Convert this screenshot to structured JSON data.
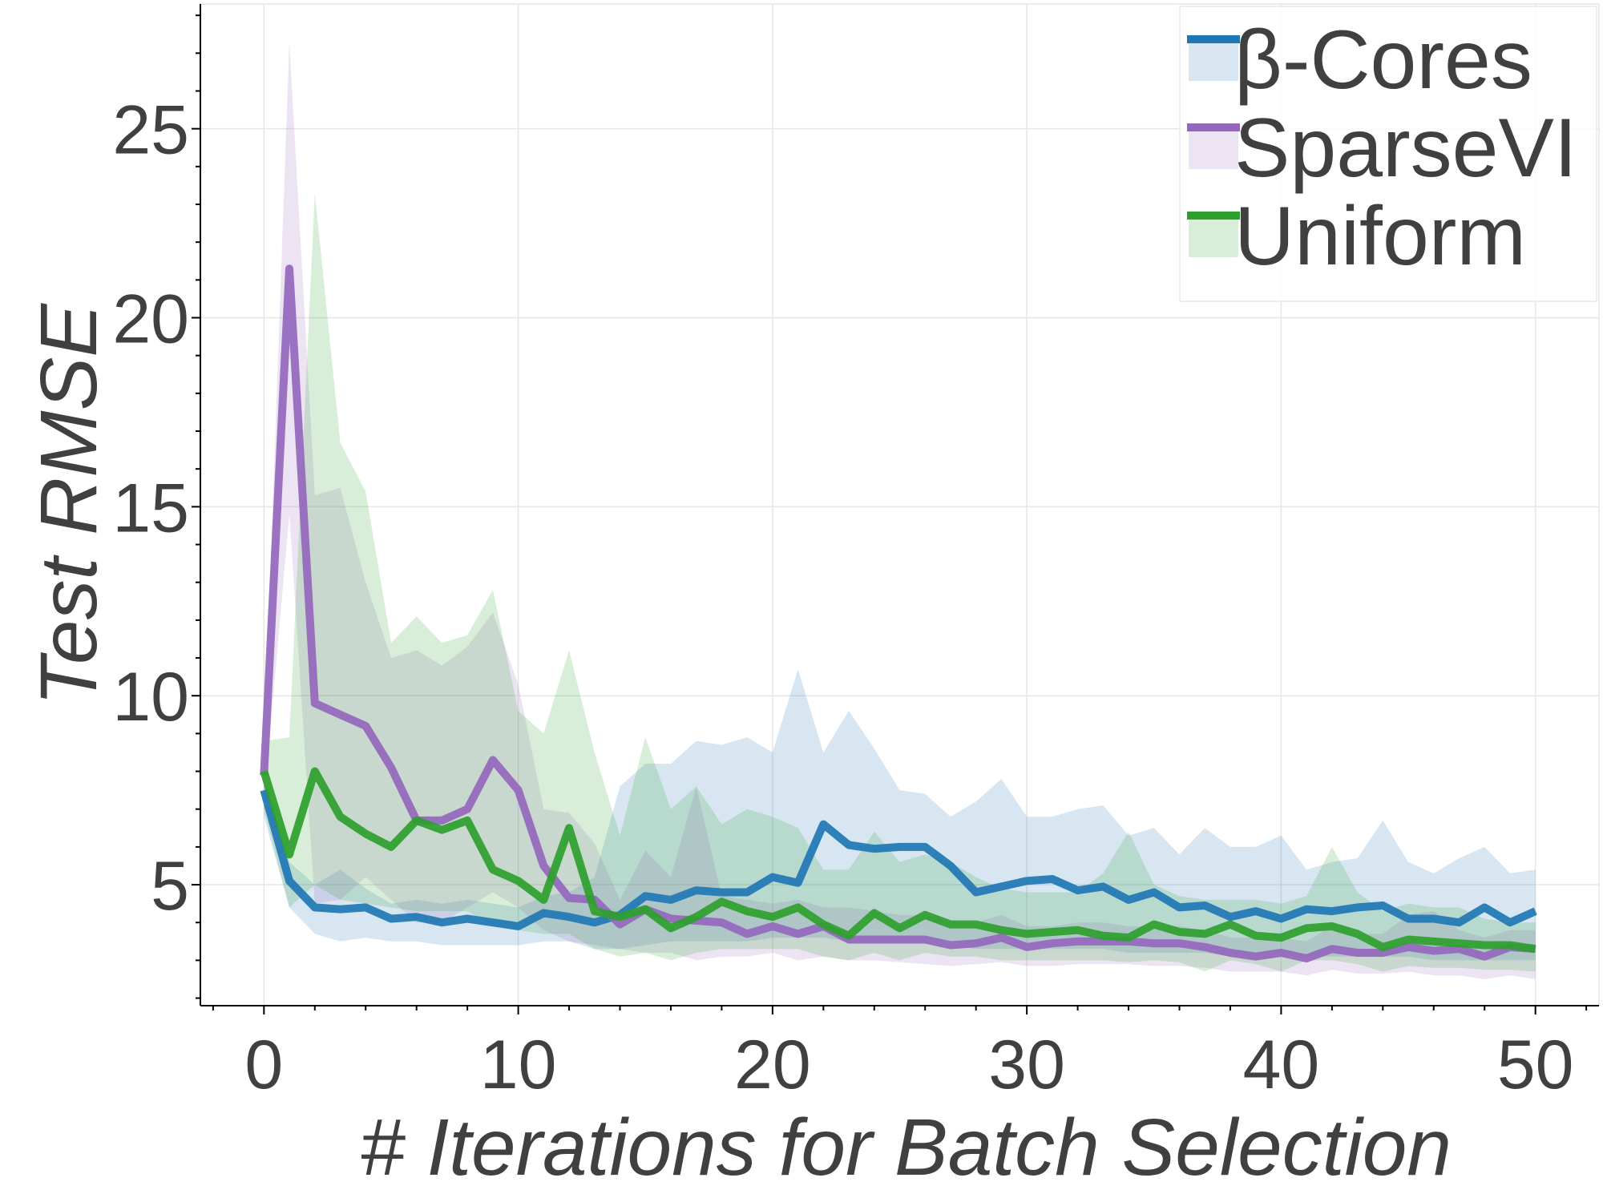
{
  "colors": {
    "beta_cores": "#1f77b4",
    "sparsevi": "#9467bd",
    "uniform": "#2ca02c",
    "text": "#404040",
    "grid": "#e6e6e6"
  },
  "chart_data": {
    "type": "line",
    "title": "",
    "xlabel": "# Iterations for Batch Selection",
    "ylabel": "Test RMSE",
    "xlim": [
      -2.5,
      52.5
    ],
    "ylim": [
      1.8,
      28.3
    ],
    "xticks": [
      0,
      10,
      20,
      30,
      40,
      50
    ],
    "yticks": [
      5,
      10,
      15,
      20,
      25
    ],
    "grid": true,
    "legend_position": "top-right",
    "x": [
      0,
      1,
      2,
      3,
      4,
      5,
      6,
      7,
      8,
      9,
      10,
      11,
      12,
      13,
      14,
      15,
      16,
      17,
      18,
      19,
      20,
      21,
      22,
      23,
      24,
      25,
      26,
      27,
      28,
      29,
      30,
      31,
      32,
      33,
      34,
      35,
      36,
      37,
      38,
      39,
      40,
      41,
      42,
      43,
      44,
      45,
      46,
      47,
      48,
      49,
      50
    ],
    "series": [
      {
        "name": "β-Cores",
        "color": "#1f77b4",
        "values": [
          7.5,
          5.1,
          4.4,
          4.35,
          4.4,
          4.1,
          4.15,
          4.0,
          4.1,
          4.0,
          3.9,
          4.25,
          4.15,
          4.0,
          4.2,
          4.7,
          4.6,
          4.85,
          4.8,
          4.8,
          5.2,
          5.05,
          6.6,
          6.05,
          5.95,
          6.0,
          6.0,
          5.5,
          4.8,
          4.95,
          5.1,
          5.15,
          4.85,
          4.95,
          4.6,
          4.8,
          4.4,
          4.45,
          4.15,
          4.3,
          4.1,
          4.35,
          4.3,
          4.4,
          4.45,
          4.1,
          4.1,
          4.0,
          4.4,
          4.0,
          4.3
        ],
        "upper": [
          7.8,
          5.6,
          5.0,
          5.4,
          4.9,
          4.5,
          4.6,
          4.5,
          4.6,
          4.5,
          4.4,
          4.7,
          4.8,
          5.2,
          7.6,
          8.2,
          8.2,
          8.8,
          8.7,
          8.9,
          8.5,
          10.7,
          8.5,
          9.6,
          8.6,
          7.5,
          7.4,
          6.8,
          7.2,
          7.8,
          6.8,
          6.8,
          7.0,
          7.1,
          6.3,
          6.5,
          5.8,
          6.5,
          6.0,
          6.0,
          6.3,
          5.4,
          5.6,
          5.7,
          6.7,
          5.6,
          5.3,
          5.7,
          6.0,
          5.3,
          5.4
        ],
        "lower": [
          6.8,
          4.4,
          3.7,
          3.5,
          3.6,
          3.5,
          3.5,
          3.4,
          3.4,
          3.4,
          3.4,
          3.5,
          3.5,
          3.3,
          3.3,
          3.4,
          3.5,
          3.5,
          3.5,
          3.5,
          3.6,
          3.6,
          3.6,
          3.5,
          3.5,
          3.5,
          3.5,
          3.4,
          3.3,
          3.3,
          3.3,
          3.3,
          3.3,
          3.3,
          3.2,
          3.2,
          3.2,
          3.2,
          3.1,
          3.1,
          3.1,
          3.1,
          3.1,
          3.1,
          3.1,
          3.1,
          3.0,
          3.0,
          3.0,
          3.0,
          3.0
        ]
      },
      {
        "name": "SparseVI",
        "color": "#9467bd",
        "values": [
          7.9,
          21.3,
          9.8,
          9.5,
          9.2,
          8.1,
          6.7,
          6.7,
          7.0,
          8.3,
          7.5,
          5.5,
          4.65,
          4.6,
          3.95,
          4.35,
          4.1,
          4.05,
          4.0,
          3.7,
          3.9,
          3.7,
          3.9,
          3.55,
          3.55,
          3.55,
          3.55,
          3.4,
          3.45,
          3.6,
          3.35,
          3.45,
          3.5,
          3.5,
          3.5,
          3.45,
          3.45,
          3.35,
          3.2,
          3.1,
          3.2,
          3.05,
          3.3,
          3.2,
          3.2,
          3.35,
          3.25,
          3.3,
          3.1,
          3.35,
          3.3
        ],
        "upper": [
          8.5,
          27.3,
          15.3,
          15.5,
          13.0,
          11.0,
          11.2,
          10.8,
          11.3,
          12.2,
          10.3,
          7.0,
          6.9,
          6.1,
          4.6,
          5.9,
          5.2,
          7.6,
          4.7,
          4.6,
          4.5,
          4.6,
          4.4,
          4.4,
          4.3,
          4.2,
          4.2,
          4.0,
          4.0,
          4.2,
          3.9,
          3.9,
          4.0,
          4.0,
          3.9,
          3.9,
          3.9,
          3.8,
          3.6,
          3.6,
          3.6,
          3.5,
          3.9,
          3.7,
          3.7,
          4.2,
          4.3,
          3.8,
          3.6,
          3.8,
          3.8
        ],
        "lower": [
          7.2,
          14.8,
          4.5,
          4.6,
          5.2,
          4.6,
          4.0,
          4.0,
          4.4,
          4.8,
          4.4,
          3.8,
          3.5,
          3.4,
          3.3,
          3.2,
          3.2,
          3.0,
          3.1,
          3.1,
          3.2,
          3.0,
          3.1,
          3.0,
          3.0,
          2.95,
          2.9,
          2.85,
          2.9,
          2.95,
          2.85,
          2.85,
          2.9,
          2.9,
          2.9,
          2.85,
          2.85,
          2.8,
          2.7,
          2.7,
          2.7,
          2.6,
          2.75,
          2.65,
          2.65,
          2.7,
          2.6,
          2.6,
          2.5,
          2.6,
          2.5
        ]
      },
      {
        "name": "Uniform",
        "color": "#2ca02c",
        "values": [
          8.0,
          5.8,
          8.0,
          6.8,
          6.35,
          6.0,
          6.7,
          6.45,
          6.7,
          5.4,
          5.1,
          4.6,
          6.5,
          4.3,
          4.15,
          4.35,
          3.85,
          4.15,
          4.55,
          4.3,
          4.15,
          4.4,
          3.95,
          3.65,
          4.25,
          3.85,
          4.2,
          3.95,
          3.95,
          3.8,
          3.7,
          3.75,
          3.8,
          3.65,
          3.6,
          3.95,
          3.75,
          3.7,
          3.95,
          3.65,
          3.6,
          3.85,
          3.9,
          3.7,
          3.35,
          3.55,
          3.5,
          3.45,
          3.4,
          3.4,
          3.3
        ],
        "upper": [
          8.8,
          8.9,
          23.3,
          16.7,
          15.4,
          11.4,
          12.1,
          11.4,
          11.6,
          12.8,
          9.6,
          9.0,
          11.2,
          8.5,
          6.3,
          8.9,
          7.0,
          7.6,
          6.6,
          7.0,
          6.8,
          6.5,
          5.4,
          5.4,
          6.4,
          5.6,
          5.8,
          5.6,
          5.2,
          4.9,
          4.8,
          4.8,
          4.8,
          5.3,
          6.4,
          5.0,
          4.7,
          4.6,
          4.6,
          4.6,
          4.5,
          4.7,
          6.0,
          4.8,
          4.3,
          4.5,
          4.4,
          4.4,
          4.1,
          4.0,
          4.0
        ],
        "lower": [
          7.0,
          4.4,
          5.0,
          4.6,
          4.5,
          4.4,
          4.3,
          4.3,
          4.3,
          3.9,
          3.8,
          3.7,
          3.7,
          3.3,
          3.1,
          3.2,
          3.0,
          3.2,
          3.3,
          3.3,
          3.3,
          3.3,
          3.1,
          3.0,
          3.2,
          3.0,
          3.2,
          3.1,
          3.1,
          3.0,
          3.0,
          3.0,
          3.0,
          3.0,
          2.95,
          3.0,
          2.95,
          2.7,
          3.0,
          2.9,
          2.7,
          3.0,
          3.0,
          2.9,
          2.7,
          2.85,
          2.8,
          2.8,
          2.75,
          2.75,
          2.7
        ]
      }
    ]
  }
}
